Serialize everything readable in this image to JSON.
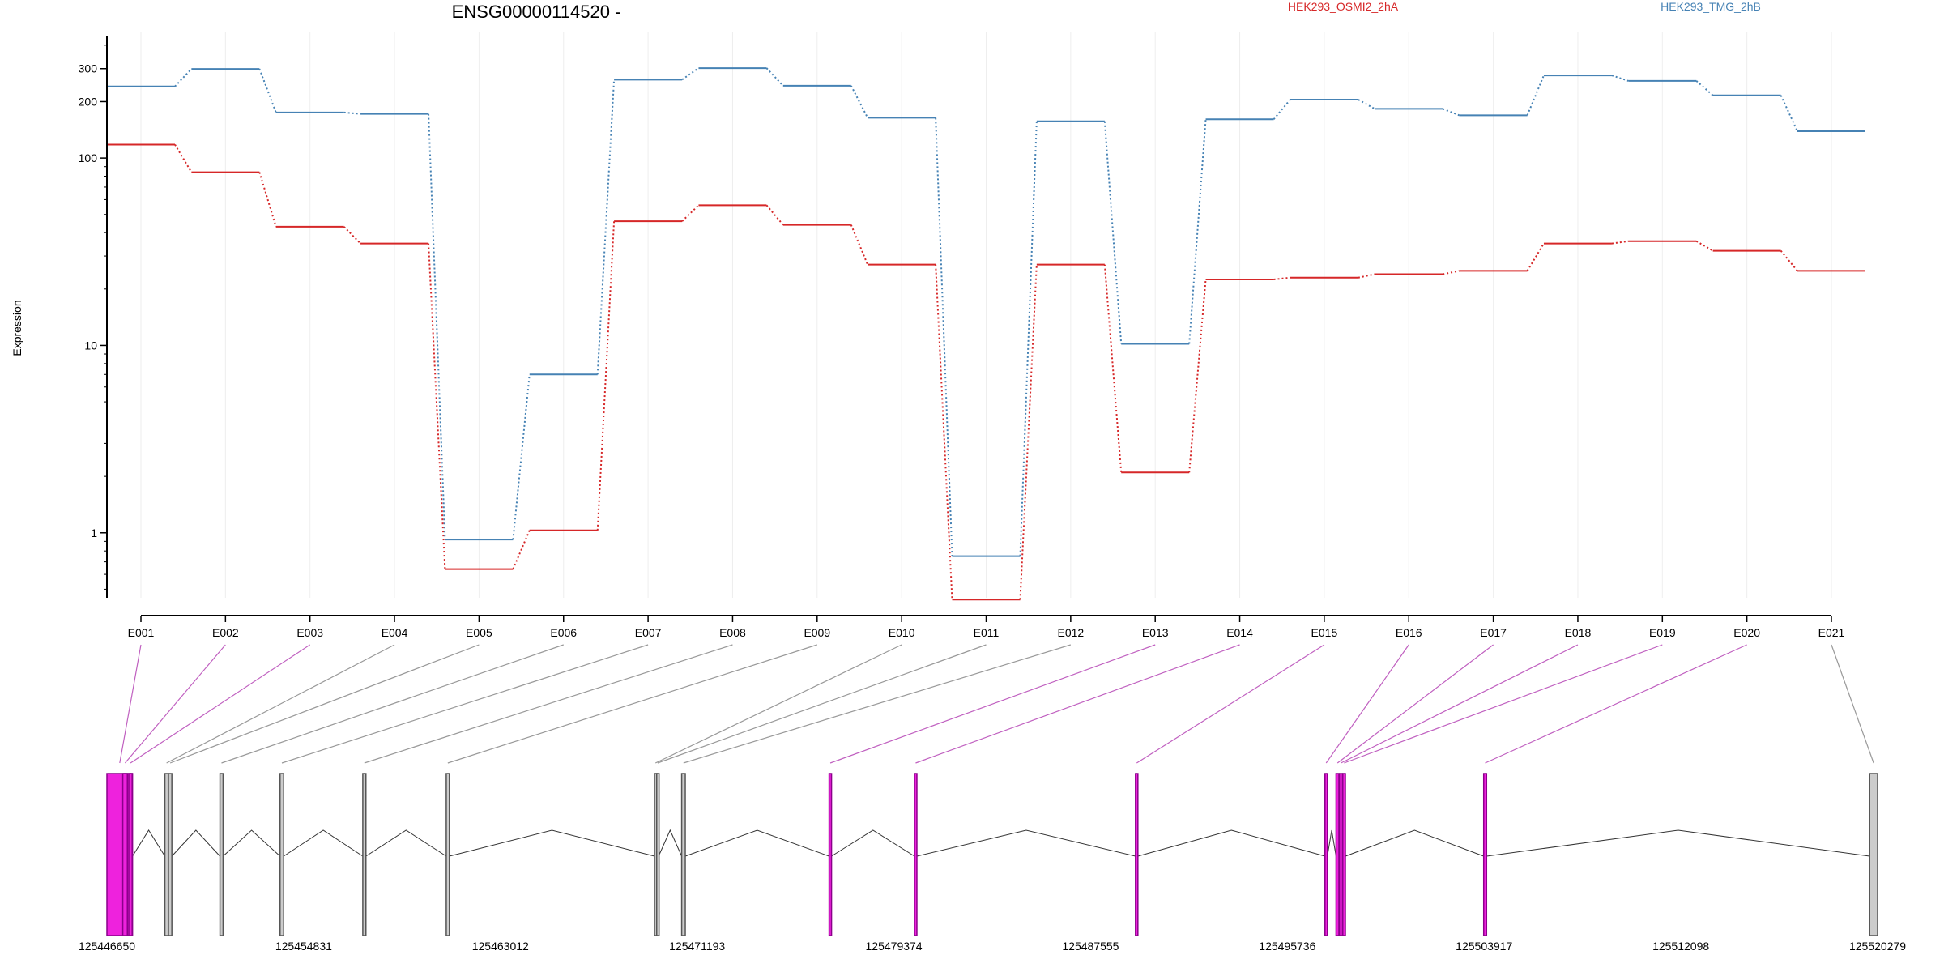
{
  "chart_data": {
    "type": "line",
    "title": "ENSG00000114520 -",
    "ylabel": "Expression",
    "yscale": "log",
    "ylim": [
      0.45,
      450
    ],
    "yticks": [
      1,
      10,
      100,
      200,
      300
    ],
    "ytick_labels": [
      "1",
      "10",
      "100",
      "200",
      "300"
    ],
    "categories": [
      "E001",
      "E002",
      "E003",
      "E004",
      "E005",
      "E006",
      "E007",
      "E008",
      "E009",
      "E010",
      "E011",
      "E012",
      "E013",
      "E014",
      "E015",
      "E016",
      "E017",
      "E018",
      "E019",
      "E020",
      "E021"
    ],
    "grid": "vertical",
    "series": [
      {
        "name": "HEK293_OSMI2_2hA",
        "color": "#d62728",
        "values": [
          118,
          84,
          43,
          35,
          0.64,
          1.03,
          46,
          56,
          44,
          27,
          0.44,
          27,
          2.1,
          22.5,
          23,
          24,
          25,
          35,
          36,
          32,
          25
        ]
      },
      {
        "name": "HEK293_TMG_2hB",
        "color": "#4682b4",
        "values": [
          241,
          299,
          175,
          172,
          0.92,
          7.0,
          262,
          302,
          243,
          164,
          0.75,
          157,
          10.2,
          161,
          205,
          183,
          169,
          276,
          258,
          216,
          139
        ]
      }
    ],
    "genomic_axis": {
      "tick_labels": [
        "125446650",
        "125454831",
        "125463012",
        "125471193",
        "125479374",
        "125487555",
        "125495736",
        "125503917",
        "125512098",
        "125520279"
      ],
      "range": [
        125446650,
        125520279
      ]
    },
    "exons": [
      {
        "id": "E001",
        "start": 125446650,
        "end": 125447715,
        "highlighted": true
      },
      {
        "id": "E002",
        "start": 125447310,
        "end": 125447500,
        "highlighted": true
      },
      {
        "id": "E003",
        "start": 125447560,
        "end": 125447700,
        "highlighted": true
      },
      {
        "id": "E004",
        "start": 125449060,
        "end": 125449200,
        "highlighted": false
      },
      {
        "id": "E005",
        "start": 125449210,
        "end": 125449350,
        "highlighted": false
      },
      {
        "id": "E006",
        "start": 125451350,
        "end": 125451480,
        "highlighted": false
      },
      {
        "id": "E007",
        "start": 125453850,
        "end": 125454000,
        "highlighted": false
      },
      {
        "id": "E008",
        "start": 125457290,
        "end": 125457420,
        "highlighted": false
      },
      {
        "id": "E009",
        "start": 125460760,
        "end": 125460890,
        "highlighted": false
      },
      {
        "id": "E010",
        "start": 125469420,
        "end": 125469500,
        "highlighted": false
      },
      {
        "id": "E011",
        "start": 125469510,
        "end": 125469590,
        "highlighted": false
      },
      {
        "id": "E012",
        "start": 125470550,
        "end": 125470700,
        "highlighted": false
      },
      {
        "id": "E013",
        "start": 125476680,
        "end": 125476780,
        "highlighted": true
      },
      {
        "id": "E014",
        "start": 125480230,
        "end": 125480330,
        "highlighted": true
      },
      {
        "id": "E015",
        "start": 125489420,
        "end": 125489520,
        "highlighted": true
      },
      {
        "id": "E016",
        "start": 125497300,
        "end": 125497400,
        "highlighted": true
      },
      {
        "id": "E017",
        "start": 125497760,
        "end": 125497880,
        "highlighted": true
      },
      {
        "id": "E018",
        "start": 125497900,
        "end": 125498030,
        "highlighted": true
      },
      {
        "id": "E019",
        "start": 125498040,
        "end": 125498150,
        "highlighted": true
      },
      {
        "id": "E020",
        "start": 125503900,
        "end": 125504020,
        "highlighted": true
      },
      {
        "id": "E021",
        "start": 125519950,
        "end": 125520279,
        "highlighted": false
      }
    ],
    "colors": {
      "highlight_fill": "#ee22dd",
      "highlight_edge": "#8b008b",
      "exon_fill": "#cccccc",
      "exon_edge": "#555555",
      "connector_highlight": "#c060c0",
      "connector_plain": "#999999",
      "intron": "#333333",
      "grid": "#eeeeee"
    }
  }
}
